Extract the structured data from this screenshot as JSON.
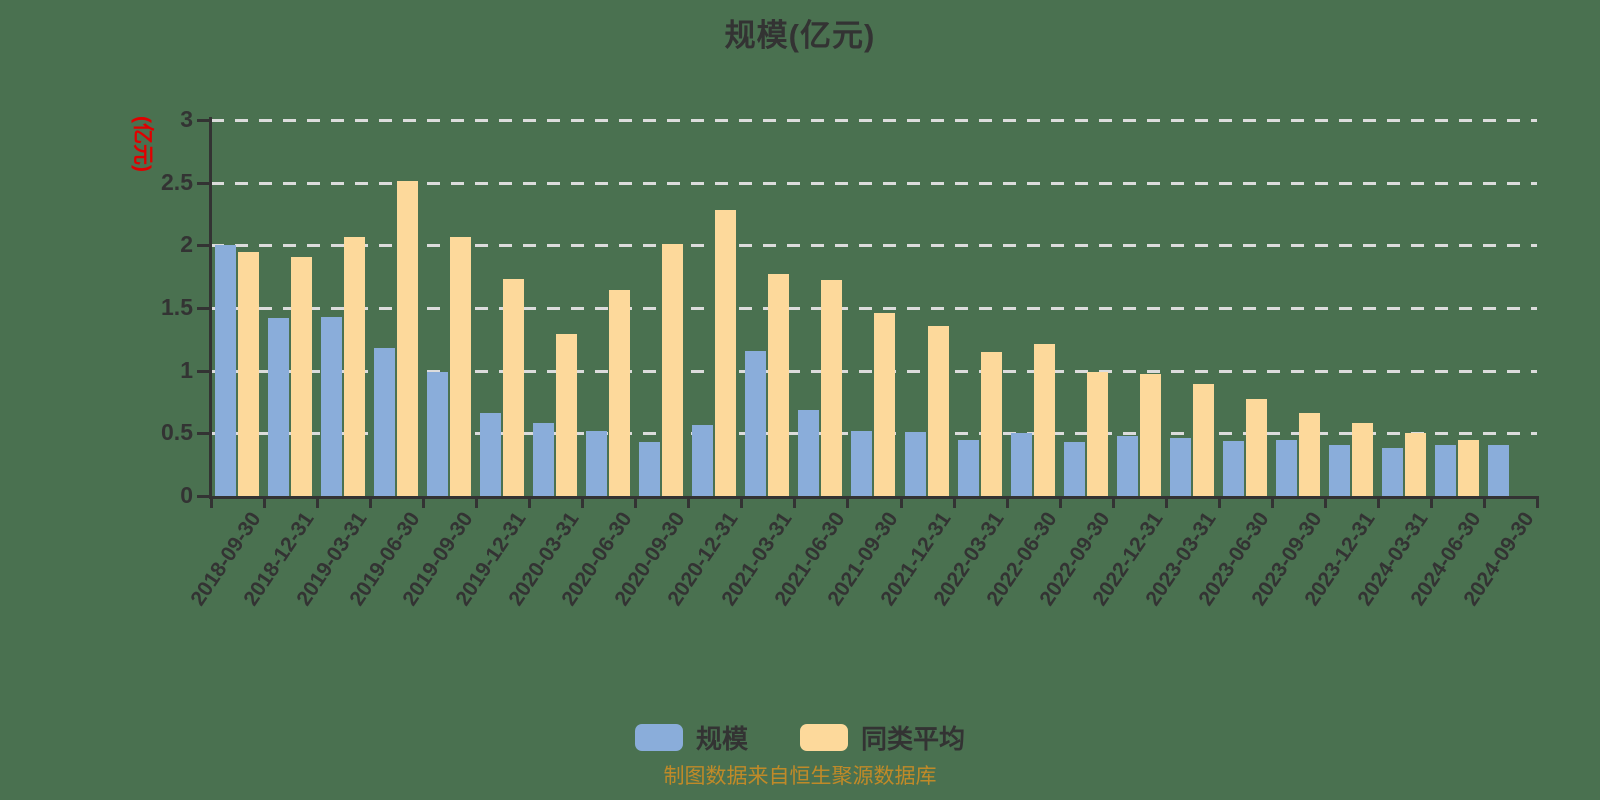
{
  "title": "规模(亿元)",
  "y_axis": {
    "name": "(亿元)",
    "name_color": "#e00000",
    "tick_labels": [
      "0",
      "0.5",
      "1",
      "1.5",
      "2",
      "2.5",
      "3"
    ]
  },
  "footer": "制图数据来自恒生聚源数据库",
  "colors": {
    "background": "#4a7150",
    "axis": "#333333",
    "gridline": "#dcdcdc",
    "title_text": "#333333",
    "source_note": "#c08a28",
    "series_scale": "#8aadda",
    "series_average": "#fdd99b"
  },
  "chart_data": {
    "type": "bar",
    "title": "规模(亿元)",
    "xlabel": "",
    "ylabel": "(亿元)",
    "ylim": [
      0,
      3
    ],
    "yticks": [
      0,
      0.5,
      1,
      1.5,
      2,
      2.5,
      3
    ],
    "grid": "horizontal dashed",
    "legend_position": "bottom",
    "x_label_rotation_deg": 56,
    "source_note": "制图数据来自恒生聚源数据库",
    "categories": [
      "2018-09-30",
      "2018-12-31",
      "2019-03-31",
      "2019-06-30",
      "2019-09-30",
      "2019-12-31",
      "2020-03-31",
      "2020-06-30",
      "2020-09-30",
      "2020-12-31",
      "2021-03-31",
      "2021-06-30",
      "2021-09-30",
      "2021-12-31",
      "2022-03-31",
      "2022-06-30",
      "2022-09-30",
      "2022-12-31",
      "2023-03-31",
      "2023-06-30",
      "2023-09-30",
      "2023-12-31",
      "2024-03-31",
      "2024-06-30",
      "2024-09-30"
    ],
    "series": [
      {
        "name": "规模",
        "color": "#8aadda",
        "values": [
          2.0,
          1.42,
          1.43,
          1.18,
          0.99,
          0.66,
          0.58,
          0.52,
          0.43,
          0.57,
          1.16,
          0.69,
          0.52,
          0.51,
          0.45,
          0.5,
          0.43,
          0.48,
          0.46,
          0.44,
          0.45,
          0.41,
          0.38,
          0.41,
          0.41
        ]
      },
      {
        "name": "同类平均",
        "color": "#fdd99b",
        "values": [
          1.95,
          1.91,
          2.07,
          2.51,
          2.07,
          1.73,
          1.29,
          1.64,
          2.01,
          2.28,
          1.77,
          1.72,
          1.46,
          1.36,
          1.15,
          1.21,
          0.99,
          0.97,
          0.89,
          0.77,
          0.66,
          0.58,
          0.5,
          0.45,
          null
        ]
      }
    ]
  }
}
